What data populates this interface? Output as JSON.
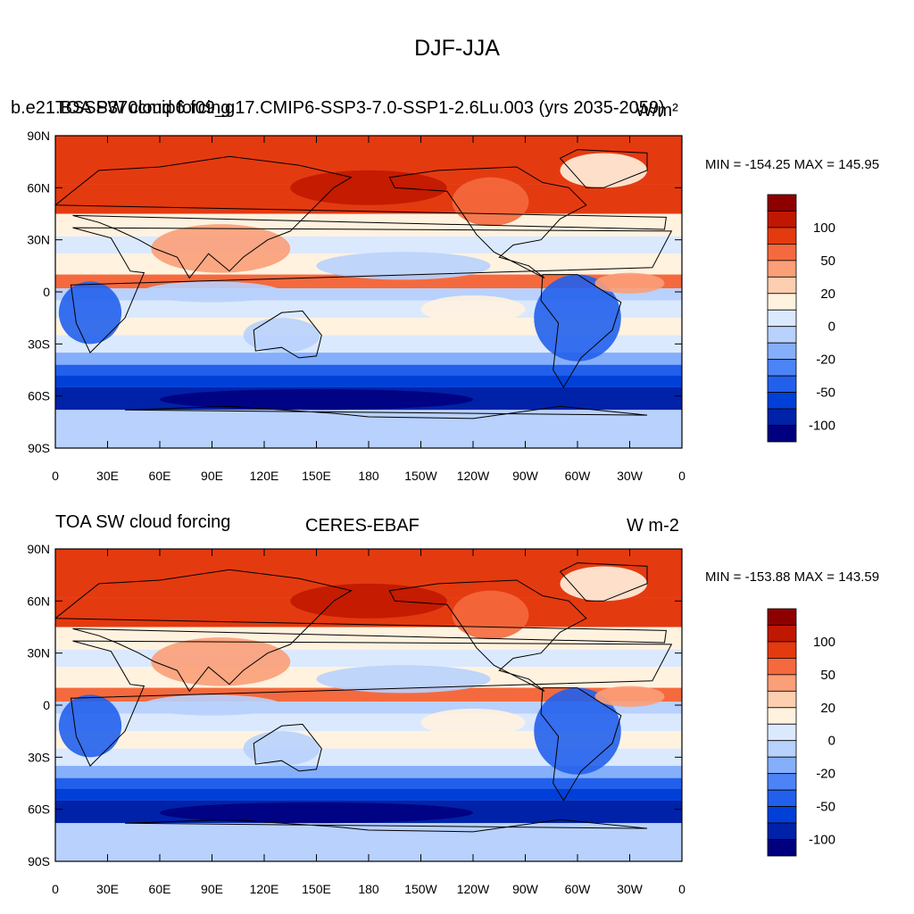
{
  "main_title": "DJF-JJA",
  "colors": [
    "#00007f",
    "#0022a8",
    "#0040d8",
    "#2260ec",
    "#4d84f5",
    "#85aefb",
    "#b8d1fd",
    "#dbe9fe",
    "#fff2df",
    "#fdcfb0",
    "#fb9f78",
    "#f46a3e",
    "#e43a10",
    "#c01800",
    "#8e0000"
  ],
  "colorbar_labels": [
    "-100",
    "-50",
    "-20",
    "0",
    "20",
    "50",
    "100"
  ],
  "y_ticks": [
    "90N",
    "60N",
    "30N",
    "0",
    "30S",
    "60S",
    "90S"
  ],
  "x_ticks": [
    "0",
    "30E",
    "60E",
    "90E",
    "120E",
    "150E",
    "180",
    "150W",
    "120W",
    "90W",
    "60W",
    "30W",
    "0"
  ],
  "panels": [
    {
      "left_title": "TOA SW cloud forcing",
      "center_title": "b.e21.BSSP370cmip6.f09_g17.CMIP6-SSP3-7.0-SSP1-2.6Lu.003 (yrs 2035-2059)",
      "right_title": "W/m²",
      "stats": "MIN = -154.25 MAX = 145.95"
    },
    {
      "left_title": "TOA SW cloud forcing",
      "center_title": "CERES-EBAF",
      "right_title": "W m-2",
      "stats": "MIN = -153.88 MAX = 143.59"
    }
  ]
}
